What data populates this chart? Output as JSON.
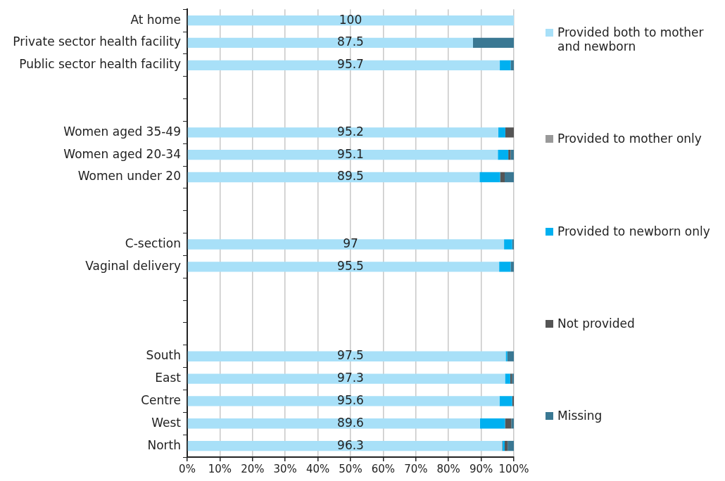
{
  "chart_data": {
    "type": "bar",
    "orientation": "horizontal",
    "stacked": true,
    "categories": [
      "At home",
      "Private sector health facility",
      "Public sector health facility",
      null,
      null,
      "Women aged 35-49",
      "Women aged 20-34",
      "Women under 20",
      null,
      null,
      "C-section",
      "Vaginal delivery",
      null,
      null,
      null,
      "South",
      "East",
      "Centre",
      "West",
      "North"
    ],
    "series": [
      {
        "name": "Provided both to mother and newborn",
        "color": "#a8e0f8",
        "values": [
          100,
          87.5,
          95.7,
          null,
          null,
          95.2,
          95.1,
          89.5,
          null,
          null,
          97,
          95.5,
          null,
          null,
          null,
          97.5,
          97.3,
          95.6,
          89.6,
          96.3
        ],
        "value_labels": [
          "100",
          "87.5",
          "95.7",
          null,
          null,
          "95.2",
          "95.1",
          "89.5",
          null,
          null,
          "97",
          "95.5",
          null,
          null,
          null,
          "97.5",
          "97.3",
          "95.6",
          "89.6",
          "96.3"
        ]
      },
      {
        "name": "Provided to mother only",
        "color": "#999999",
        "values": [
          0,
          0,
          0,
          null,
          null,
          0,
          0,
          0,
          null,
          null,
          0,
          0,
          null,
          null,
          null,
          0,
          0,
          0,
          0,
          0.2
        ]
      },
      {
        "name": "Provided to newborn only",
        "color": "#00b0f0",
        "values": [
          0,
          0,
          3.3,
          null,
          null,
          2.2,
          3.2,
          6.3,
          null,
          null,
          2.5,
          3.5,
          null,
          null,
          null,
          0.5,
          1.6,
          3.9,
          7.7,
          0.7
        ]
      },
      {
        "name": "Not provided",
        "color": "#555555",
        "values": [
          0,
          0,
          0,
          null,
          null,
          2.6,
          0.7,
          1.4,
          null,
          null,
          0,
          0,
          null,
          null,
          null,
          0,
          0.5,
          0.5,
          1.9,
          0.9
        ]
      },
      {
        "name": "Missing",
        "color": "#3a7893",
        "values": [
          0,
          12.5,
          1.0,
          null,
          null,
          0,
          1.0,
          2.8,
          null,
          null,
          0.5,
          1.0,
          null,
          null,
          null,
          2.0,
          0.6,
          0,
          0.8,
          1.9
        ]
      }
    ],
    "xlim": [
      0,
      100
    ],
    "xticks": [
      {
        "value": 0,
        "label": "0%"
      },
      {
        "value": 10,
        "label": "10%"
      },
      {
        "value": 20,
        "label": "20%"
      },
      {
        "value": 30,
        "label": "30%"
      },
      {
        "value": 40,
        "label": "40%"
      },
      {
        "value": 50,
        "label": "50%"
      },
      {
        "value": 60,
        "label": "60%"
      },
      {
        "value": 70,
        "label": "70%"
      },
      {
        "value": 80,
        "label": "80%"
      },
      {
        "value": 90,
        "label": "90%"
      },
      {
        "value": 100,
        "label": "100%"
      }
    ],
    "grid": "x",
    "legend": "right"
  }
}
